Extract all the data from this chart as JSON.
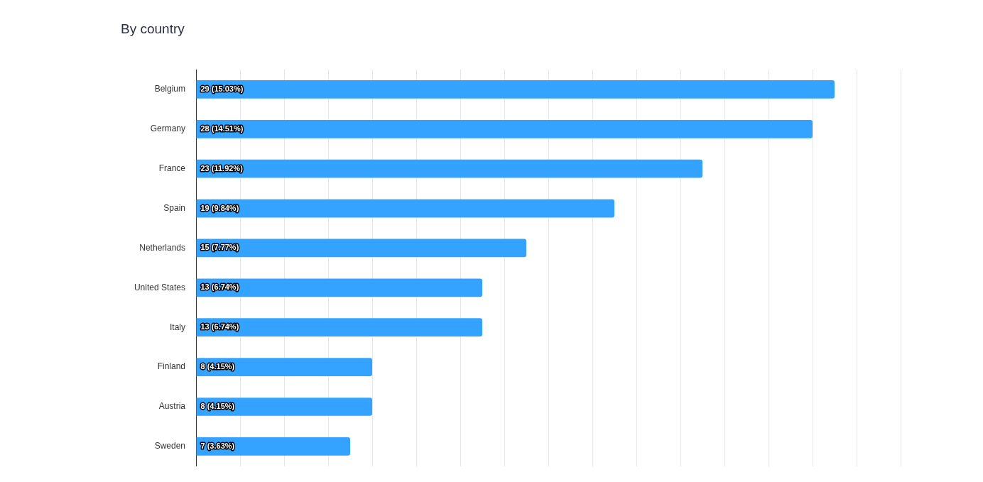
{
  "chart_data": {
    "type": "bar",
    "orientation": "horizontal",
    "title": "By country",
    "categories": [
      "Belgium",
      "Germany",
      "France",
      "Spain",
      "Netherlands",
      "United States",
      "Italy",
      "Finland",
      "Austria",
      "Sweden"
    ],
    "values": [
      29,
      28,
      23,
      19,
      15,
      13,
      13,
      8,
      8,
      7
    ],
    "value_labels": [
      "29 (15.03%)",
      "28 (14.51%)",
      "23 (11.92%)",
      "19 (9.84%)",
      "15 (7.77%)",
      "13 (6.74%)",
      "13 (6.74%)",
      "8 (4.15%)",
      "8 (4.15%)",
      "7 (3.63%)"
    ],
    "color": "#33a3ff",
    "xlim": [
      0,
      32
    ],
    "xticks": [
      {
        "value": 0,
        "label": null
      },
      {
        "value": 2,
        "label": null
      },
      {
        "value": 4,
        "label": null
      },
      {
        "value": 6,
        "label": null
      },
      {
        "value": 8,
        "label": null
      },
      {
        "value": 10,
        "label": null
      },
      {
        "value": 12,
        "label": null
      },
      {
        "value": 14,
        "label": null
      },
      {
        "value": 16,
        "label": null
      },
      {
        "value": 18,
        "label": null
      },
      {
        "value": 20,
        "label": null
      },
      {
        "value": 22,
        "label": null
      },
      {
        "value": 24,
        "label": null
      },
      {
        "value": 26,
        "label": null
      },
      {
        "value": 28,
        "label": null
      },
      {
        "value": 30,
        "label": null
      },
      {
        "value": 32,
        "label": null
      }
    ],
    "grid": "x",
    "tick_labels": "y",
    "legend": false
  }
}
